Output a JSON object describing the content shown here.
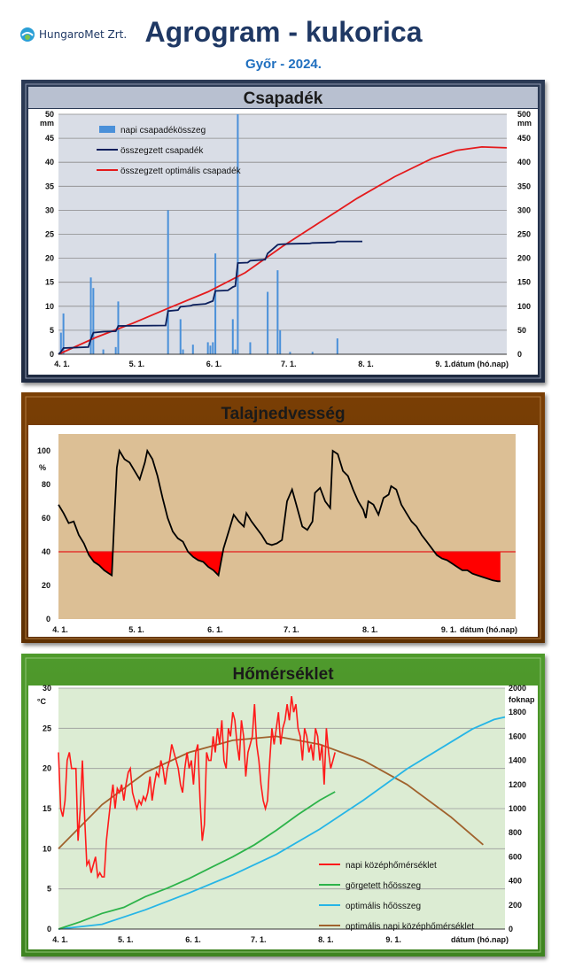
{
  "header": {
    "logo_text": "HungaroMet Zrt.",
    "title": "Agrogram - kukorica",
    "subtitle": "Győr - 2024."
  },
  "chart_data": [
    {
      "id": "precip",
      "type": "bar+line",
      "title": "Csapadék",
      "y_unit_left": "mm",
      "y_unit_right": "mm",
      "xlabel": "dátum (hó.nap)",
      "x_ticks": [
        "4. 1.",
        "5. 1.",
        "6. 1.",
        "7. 1.",
        "8. 1.",
        "9. 1."
      ],
      "x_range_days": [
        0,
        180
      ],
      "ylim_left": [
        0,
        50
      ],
      "y_ticks_left": [
        "0",
        "5",
        "10",
        "15",
        "20",
        "25",
        "30",
        "35",
        "40",
        "45",
        "50"
      ],
      "ylim_right": [
        0,
        500
      ],
      "y_ticks_right": [
        "0",
        "50",
        "100",
        "150",
        "200",
        "250",
        "300",
        "350",
        "400",
        "450",
        "500"
      ],
      "legend": [
        "napi csapadékösszeg",
        "összegzett csapadék",
        "összegzett optimális csapadék"
      ],
      "colors": {
        "bars": "#4a90d9",
        "cum": "#0b1f5c",
        "opt": "#e41a1c",
        "plot_bg": "#d9dde6"
      },
      "daily_bars": [
        [
          1,
          4.5
        ],
        [
          2,
          8.5
        ],
        [
          13,
          16
        ],
        [
          14,
          13.8
        ],
        [
          18,
          1
        ],
        [
          23,
          1.5
        ],
        [
          24,
          11
        ],
        [
          44,
          30
        ],
        [
          49,
          7.3
        ],
        [
          50,
          1
        ],
        [
          54,
          2
        ],
        [
          60,
          2.5
        ],
        [
          61,
          1.8
        ],
        [
          62,
          2.5
        ],
        [
          63,
          21
        ],
        [
          70,
          7.3
        ],
        [
          71,
          1
        ],
        [
          72,
          50
        ],
        [
          77,
          2.5
        ],
        [
          84,
          13
        ],
        [
          88,
          17.5
        ],
        [
          89,
          5
        ],
        [
          93,
          0.5
        ],
        [
          102,
          0.5
        ],
        [
          112,
          3.3
        ]
      ],
      "cum_series": [
        [
          0,
          0
        ],
        [
          1,
          0.5
        ],
        [
          2,
          1.3
        ],
        [
          12,
          1.5
        ],
        [
          13,
          3.1
        ],
        [
          14,
          4.5
        ],
        [
          18,
          4.7
        ],
        [
          23,
          4.8
        ],
        [
          24,
          5.9
        ],
        [
          43,
          6
        ],
        [
          44,
          9
        ],
        [
          48,
          9.2
        ],
        [
          49,
          9.9
        ],
        [
          53,
          10.1
        ],
        [
          54,
          10.3
        ],
        [
          59,
          10.5
        ],
        [
          60,
          10.7
        ],
        [
          61,
          10.9
        ],
        [
          62,
          11.1
        ],
        [
          63,
          13.2
        ],
        [
          68,
          13.3
        ],
        [
          70,
          14.0
        ],
        [
          71,
          14.2
        ],
        [
          72,
          19.0
        ],
        [
          76,
          19.1
        ],
        [
          77,
          19.5
        ],
        [
          83,
          19.7
        ],
        [
          84,
          21.0
        ],
        [
          88,
          22.8
        ],
        [
          89,
          22.9
        ],
        [
          93,
          23.0
        ],
        [
          101,
          23.1
        ],
        [
          102,
          23.2
        ],
        [
          111,
          23.3
        ],
        [
          112,
          23.5
        ],
        [
          122,
          23.5
        ]
      ],
      "opt_series": [
        [
          0,
          0
        ],
        [
          15,
          3.5
        ],
        [
          30,
          6.5
        ],
        [
          45,
          9.8
        ],
        [
          60,
          13
        ],
        [
          75,
          17
        ],
        [
          90,
          22.5
        ],
        [
          105,
          27.5
        ],
        [
          120,
          32.5
        ],
        [
          135,
          37
        ],
        [
          150,
          40.8
        ],
        [
          160,
          42.5
        ],
        [
          170,
          43.2
        ],
        [
          180,
          43
        ]
      ]
    },
    {
      "id": "soil",
      "type": "line",
      "title": "Talajnedvesség",
      "y_unit": "%",
      "xlabel": "dátum (hó.nap)",
      "x_ticks": [
        "4. 1.",
        "5. 1.",
        "6. 1.",
        "7. 1.",
        "8. 1.",
        "9. 1."
      ],
      "ylim": [
        0,
        110
      ],
      "y_ticks": [
        "0",
        "20",
        "40",
        "60",
        "80",
        "100"
      ],
      "threshold": 40,
      "colors": {
        "line": "#000000",
        "threshold": "#e41a1c",
        "deficit": "#ff0000",
        "plot_bg": "#dcbf95"
      },
      "series": [
        [
          0,
          68
        ],
        [
          2,
          63
        ],
        [
          4,
          57
        ],
        [
          6,
          58
        ],
        [
          8,
          50
        ],
        [
          10,
          45
        ],
        [
          12,
          38
        ],
        [
          14,
          34
        ],
        [
          16,
          32
        ],
        [
          18,
          29
        ],
        [
          20,
          27
        ],
        [
          21,
          26
        ],
        [
          22,
          60
        ],
        [
          23,
          90
        ],
        [
          24,
          100
        ],
        [
          26,
          95
        ],
        [
          28,
          93
        ],
        [
          30,
          88
        ],
        [
          32,
          83
        ],
        [
          34,
          93
        ],
        [
          35,
          100
        ],
        [
          37,
          95
        ],
        [
          39,
          85
        ],
        [
          41,
          72
        ],
        [
          43,
          60
        ],
        [
          45,
          52
        ],
        [
          47,
          48
        ],
        [
          49,
          46
        ],
        [
          51,
          40
        ],
        [
          53,
          37
        ],
        [
          55,
          35
        ],
        [
          57,
          34
        ],
        [
          59,
          31
        ],
        [
          61,
          29
        ],
        [
          63,
          26
        ],
        [
          65,
          42
        ],
        [
          67,
          52
        ],
        [
          69,
          62
        ],
        [
          71,
          58
        ],
        [
          73,
          55
        ],
        [
          74,
          63
        ],
        [
          76,
          58
        ],
        [
          78,
          54
        ],
        [
          80,
          50
        ],
        [
          82,
          45
        ],
        [
          84,
          44
        ],
        [
          86,
          45
        ],
        [
          88,
          47
        ],
        [
          90,
          70
        ],
        [
          92,
          77
        ],
        [
          94,
          66
        ],
        [
          96,
          55
        ],
        [
          98,
          53
        ],
        [
          100,
          58
        ],
        [
          101,
          75
        ],
        [
          103,
          78
        ],
        [
          105,
          70
        ],
        [
          107,
          66
        ],
        [
          108,
          100
        ],
        [
          110,
          98
        ],
        [
          112,
          88
        ],
        [
          114,
          85
        ],
        [
          116,
          77
        ],
        [
          118,
          70
        ],
        [
          120,
          65
        ],
        [
          121,
          60
        ],
        [
          122,
          70
        ],
        [
          124,
          68
        ],
        [
          126,
          62
        ],
        [
          128,
          72
        ],
        [
          130,
          74
        ],
        [
          131,
          79
        ],
        [
          133,
          77
        ],
        [
          135,
          68
        ],
        [
          137,
          63
        ],
        [
          139,
          58
        ],
        [
          141,
          55
        ],
        [
          143,
          50
        ],
        [
          145,
          46
        ],
        [
          147,
          42
        ],
        [
          149,
          38
        ],
        [
          151,
          36
        ],
        [
          153,
          35
        ],
        [
          155,
          33
        ],
        [
          157,
          31
        ],
        [
          159,
          29
        ],
        [
          161,
          29
        ],
        [
          163,
          27
        ],
        [
          165,
          26
        ],
        [
          167,
          25
        ],
        [
          169,
          24
        ],
        [
          171,
          23
        ],
        [
          173,
          22.5
        ],
        [
          174,
          22.5
        ]
      ]
    },
    {
      "id": "temp",
      "type": "line",
      "title": "Hőmérséklet",
      "y_unit_left": "°C",
      "y_unit_right": "foknap",
      "xlabel": "dátum (hó.nap)",
      "x_ticks": [
        "4. 1.",
        "5. 1.",
        "6. 1.",
        "7. 1.",
        "8. 1.",
        "9. 1."
      ],
      "ylim_left": [
        0,
        30
      ],
      "y_ticks_left": [
        "0",
        "5",
        "10",
        "15",
        "20",
        "25",
        "30"
      ],
      "ylim_right": [
        0,
        2000
      ],
      "y_ticks_right": [
        "0",
        "200",
        "400",
        "600",
        "800",
        "1000",
        "1200",
        "1400",
        "1600",
        "1800",
        "2000"
      ],
      "legend": [
        "napi középhőmérséklet",
        "görgetett hőösszeg",
        "optimális hőösszeg",
        "optimális napi középhőmérséklet"
      ],
      "colors": {
        "daily": "#ff1a1a",
        "cum": "#2db34a",
        "opt_cum": "#26b5e6",
        "opt_daily": "#a0622d",
        "plot_bg": "#dcecd3"
      },
      "daily_temp": [
        [
          0,
          22
        ],
        [
          1,
          15
        ],
        [
          2,
          14
        ],
        [
          3,
          16
        ],
        [
          4,
          21
        ],
        [
          5,
          22
        ],
        [
          6,
          20
        ],
        [
          7,
          20
        ],
        [
          8,
          20
        ],
        [
          9,
          11
        ],
        [
          10,
          15
        ],
        [
          11,
          21
        ],
        [
          12,
          14
        ],
        [
          13,
          8
        ],
        [
          14,
          8.5
        ],
        [
          15,
          7
        ],
        [
          16,
          8
        ],
        [
          17,
          9
        ],
        [
          18,
          6.5
        ],
        [
          19,
          7
        ],
        [
          20,
          6.5
        ],
        [
          21,
          6.5
        ],
        [
          22,
          11
        ],
        [
          23,
          13.5
        ],
        [
          24,
          16
        ],
        [
          25,
          18
        ],
        [
          26,
          15
        ],
        [
          27,
          17.5
        ],
        [
          28,
          17
        ],
        [
          29,
          18
        ],
        [
          30,
          16
        ],
        [
          31,
          18
        ],
        [
          32,
          19.5
        ],
        [
          33,
          20
        ],
        [
          34,
          17
        ],
        [
          35,
          16
        ],
        [
          36,
          15
        ],
        [
          37,
          16
        ],
        [
          38,
          15.5
        ],
        [
          39,
          16.5
        ],
        [
          40,
          16
        ],
        [
          41,
          17
        ],
        [
          42,
          19
        ],
        [
          43,
          16
        ],
        [
          44,
          18
        ],
        [
          45,
          19.5
        ],
        [
          46,
          19
        ],
        [
          47,
          21
        ],
        [
          48,
          20
        ],
        [
          49,
          18
        ],
        [
          50,
          20
        ],
        [
          51,
          21
        ],
        [
          52,
          23
        ],
        [
          53,
          22
        ],
        [
          54,
          21
        ],
        [
          55,
          20
        ],
        [
          56,
          18
        ],
        [
          57,
          17
        ],
        [
          58,
          20
        ],
        [
          59,
          22
        ],
        [
          60,
          20
        ],
        [
          61,
          21
        ],
        [
          62,
          18
        ],
        [
          63,
          22
        ],
        [
          64,
          23
        ],
        [
          65,
          16
        ],
        [
          66,
          11
        ],
        [
          67,
          13
        ],
        [
          68,
          22
        ],
        [
          69,
          21
        ],
        [
          70,
          21
        ],
        [
          71,
          24
        ],
        [
          72,
          22
        ],
        [
          73,
          25
        ],
        [
          74,
          23
        ],
        [
          75,
          26
        ],
        [
          76,
          21
        ],
        [
          77,
          20
        ],
        [
          78,
          25
        ],
        [
          79,
          24
        ],
        [
          80,
          27
        ],
        [
          81,
          26
        ],
        [
          82,
          23
        ],
        [
          83,
          21
        ],
        [
          84,
          26
        ],
        [
          85,
          24
        ],
        [
          86,
          19
        ],
        [
          87,
          22
        ],
        [
          88,
          23
        ],
        [
          89,
          24
        ],
        [
          90,
          28
        ],
        [
          91,
          23
        ],
        [
          92,
          21
        ],
        [
          93,
          18
        ],
        [
          94,
          16
        ],
        [
          95,
          15
        ],
        [
          96,
          16
        ],
        [
          97,
          21
        ],
        [
          98,
          25
        ],
        [
          99,
          23
        ],
        [
          100,
          25
        ],
        [
          101,
          27
        ],
        [
          102,
          23
        ],
        [
          103,
          25
        ],
        [
          104,
          26
        ],
        [
          105,
          28
        ],
        [
          106,
          26
        ],
        [
          107,
          29
        ],
        [
          108,
          27
        ],
        [
          109,
          28
        ],
        [
          110,
          25
        ],
        [
          111,
          24
        ],
        [
          112,
          21
        ],
        [
          113,
          25
        ],
        [
          114,
          24
        ],
        [
          115,
          22
        ],
        [
          116,
          23
        ],
        [
          117,
          21
        ],
        [
          118,
          25
        ],
        [
          119,
          24
        ],
        [
          120,
          21
        ],
        [
          121,
          23
        ],
        [
          122,
          18
        ],
        [
          123,
          25
        ],
        [
          124,
          22
        ],
        [
          125,
          20
        ],
        [
          126,
          21
        ],
        [
          127,
          22
        ]
      ],
      "cum_heat": [
        [
          0,
          0
        ],
        [
          10,
          60
        ],
        [
          20,
          130
        ],
        [
          30,
          180
        ],
        [
          40,
          270
        ],
        [
          50,
          340
        ],
        [
          60,
          420
        ],
        [
          70,
          510
        ],
        [
          80,
          600
        ],
        [
          90,
          700
        ],
        [
          100,
          820
        ],
        [
          110,
          950
        ],
        [
          120,
          1070
        ],
        [
          127,
          1140
        ]
      ],
      "opt_cum": [
        [
          0,
          0
        ],
        [
          20,
          40
        ],
        [
          40,
          160
        ],
        [
          60,
          300
        ],
        [
          80,
          450
        ],
        [
          100,
          620
        ],
        [
          120,
          830
        ],
        [
          140,
          1070
        ],
        [
          160,
          1330
        ],
        [
          180,
          1550
        ],
        [
          190,
          1660
        ],
        [
          200,
          1740
        ],
        [
          205,
          1760
        ]
      ],
      "opt_daily": [
        [
          0,
          10
        ],
        [
          20,
          15.5
        ],
        [
          40,
          19.5
        ],
        [
          60,
          22
        ],
        [
          80,
          23.5
        ],
        [
          100,
          24
        ],
        [
          120,
          23
        ],
        [
          140,
          21
        ],
        [
          160,
          18
        ],
        [
          180,
          14
        ],
        [
          195,
          10.5
        ]
      ]
    }
  ]
}
